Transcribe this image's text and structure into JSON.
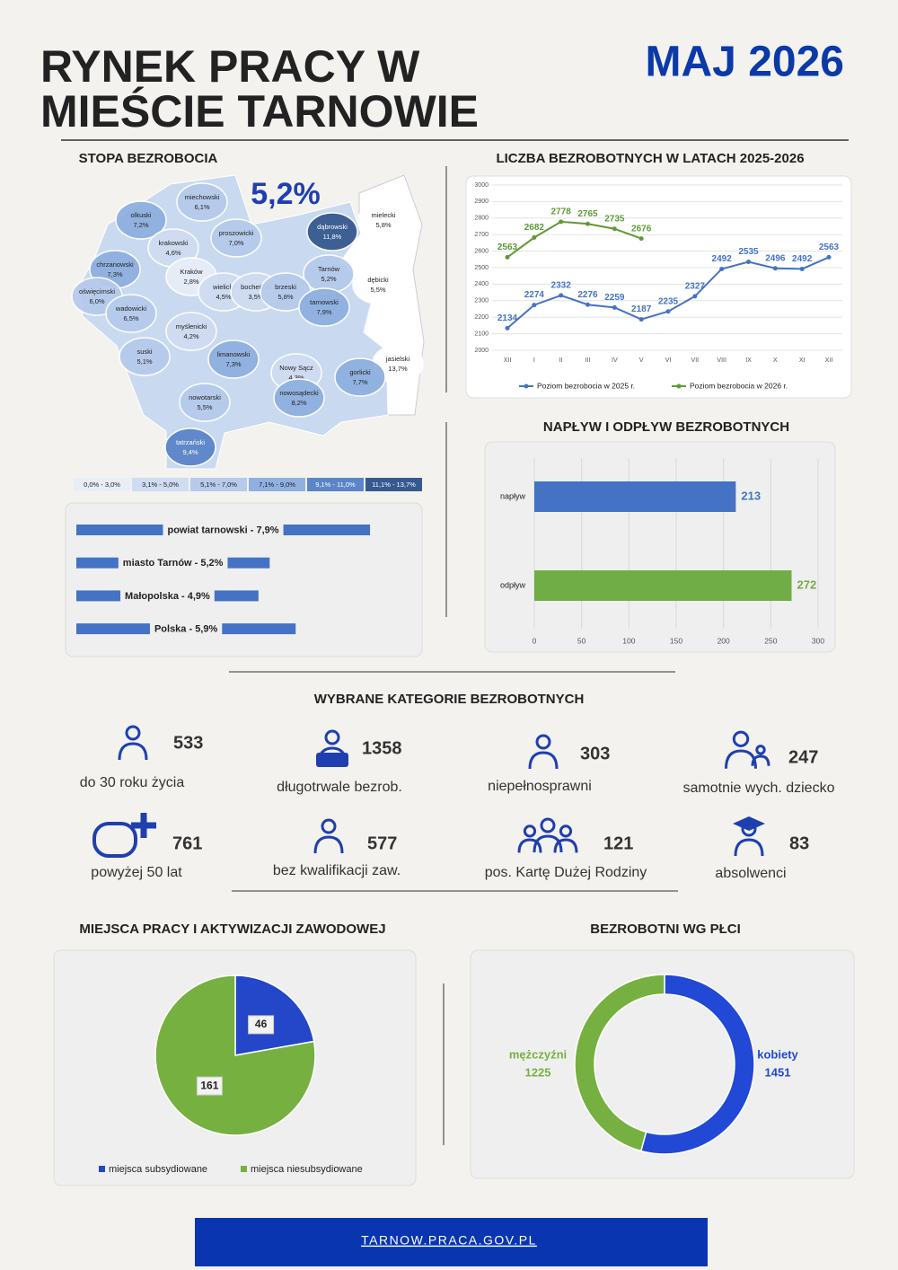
{
  "header": {
    "title_line1": "RYNEK PRACY W",
    "title_line2": "MIEŚCIE TARNOWIE",
    "date": "MAJ 2026"
  },
  "map": {
    "title": "STOPA BEZROBOCIA",
    "headline": "5,2%",
    "regions": [
      {
        "name": "miechowski",
        "rate": "6,1%",
        "color": "#b6cbeb"
      },
      {
        "name": "olkuski",
        "rate": "7,2%",
        "color": "#8fb0e0"
      },
      {
        "name": "proszowicki",
        "rate": "7,0%",
        "color": "#b6cbeb"
      },
      {
        "name": "dąbrowski",
        "rate": "11,8%",
        "color": "#36598f"
      },
      {
        "name": "mielecki",
        "rate": "5,8%",
        "color": "#ffffff"
      },
      {
        "name": "krakowski",
        "rate": "4,6%",
        "color": "#cfdcf1"
      },
      {
        "name": "chrzanowski",
        "rate": "7,3%",
        "color": "#8fb0e0"
      },
      {
        "name": "Kraków",
        "rate": "2,8%",
        "color": "#e8eef8"
      },
      {
        "name": "Tarnów",
        "rate": "5,2%",
        "color": "#b6cbeb"
      },
      {
        "name": "dębicki",
        "rate": "5,5%",
        "color": "#ffffff"
      },
      {
        "name": "oświęcimski",
        "rate": "6,0%",
        "color": "#b6cbeb"
      },
      {
        "name": "wielicki",
        "rate": "4,5%",
        "color": "#cfdcf1"
      },
      {
        "name": "bocheński",
        "rate": "3,5%",
        "color": "#cfdcf1"
      },
      {
        "name": "brzeski",
        "rate": "5,8%",
        "color": "#b6cbeb"
      },
      {
        "name": "tarnowski",
        "rate": "7,9%",
        "color": "#8fb0e0"
      },
      {
        "name": "wadowicki",
        "rate": "6,5%",
        "color": "#b6cbeb"
      },
      {
        "name": "myślenicki",
        "rate": "4,2%",
        "color": "#cfdcf1"
      },
      {
        "name": "suski",
        "rate": "5,1%",
        "color": "#b6cbeb"
      },
      {
        "name": "limanowski",
        "rate": "7,3%",
        "color": "#8fb0e0"
      },
      {
        "name": "Nowy Sącz",
        "rate": "4,3%",
        "color": "#cfdcf1"
      },
      {
        "name": "jasielski",
        "rate": "13,7%",
        "color": "#ffffff"
      },
      {
        "name": "gorlicki",
        "rate": "7,7%",
        "color": "#8fb0e0"
      },
      {
        "name": "nowosądecki",
        "rate": "8,2%",
        "color": "#8fb0e0"
      },
      {
        "name": "nowotarski",
        "rate": "5,5%",
        "color": "#b6cbeb"
      },
      {
        "name": "tatrzański",
        "rate": "9,4%",
        "color": "#5b84c9"
      }
    ],
    "legend": [
      {
        "label": "0,0% - 3,0%",
        "color": "#e8eef8"
      },
      {
        "label": "3,1% - 5,0%",
        "color": "#cfdcf1"
      },
      {
        "label": "5,1% - 7,0%",
        "color": "#b6cbeb"
      },
      {
        "label": "7,1% - 9,0%",
        "color": "#8fb0e0"
      },
      {
        "label": "9,1% - 11,0%",
        "color": "#5b84c9"
      },
      {
        "label": "11,1% - 13,7%",
        "color": "#36598f"
      }
    ]
  },
  "chart_data": [
    {
      "type": "hbar",
      "categories": [
        "powiat tarnowski - 7,9%",
        "miasto Tarnów - 5,2%",
        "Małopolska - 4,9%",
        "Polska - 5,9%"
      ],
      "values": [
        7.9,
        5.2,
        4.9,
        5.9
      ],
      "color": "#4472c4"
    },
    {
      "type": "line",
      "title": "LICZBA BEZROBOTNYCH W LATACH 2025-2026",
      "categories": [
        "XII",
        "I",
        "II",
        "III",
        "IV",
        "V",
        "VI",
        "VII",
        "VIII",
        "IX",
        "X",
        "XI",
        "XII"
      ],
      "series": [
        {
          "name": "Poziom bezrobocia w 2025 r.",
          "color": "#4472c4",
          "values": [
            2134,
            2274,
            2332,
            2276,
            2259,
            2187,
            2235,
            2327,
            2492,
            2535,
            2496,
            2492,
            2563
          ]
        },
        {
          "name": "Poziom bezrobocia w 2026 r.",
          "color": "#5f9a36",
          "values": [
            2563,
            2682,
            2778,
            2765,
            2735,
            2676,
            null,
            null,
            null,
            null,
            null,
            null,
            null
          ]
        }
      ],
      "ylim": [
        2000,
        3000
      ],
      "yticks": [
        2000,
        2100,
        2200,
        2300,
        2400,
        2500,
        2600,
        2700,
        2800,
        2900,
        3000
      ],
      "grid": true
    },
    {
      "type": "flowbar",
      "title": "NAPŁYW I ODPŁYW BEZROBOTNYCH",
      "categories": [
        "napływ",
        "odpływ"
      ],
      "values": [
        213,
        272
      ],
      "colors": [
        "#4472c4",
        "#70ad47"
      ],
      "xlim": [
        0,
        300
      ],
      "xticks": [
        0,
        50,
        100,
        150,
        200,
        250,
        300
      ],
      "grid": true
    },
    {
      "type": "pie",
      "title": "MIEJSCA PRACY I AKTYWIZACJI ZAWODOWEJ",
      "categories": [
        "miejsca subsydiowane",
        "miejsca niesubsydiowane"
      ],
      "values": [
        46,
        161
      ],
      "colors": [
        "#2446c8",
        "#76b041"
      ]
    },
    {
      "type": "donut",
      "title": "BEZROBOTNI WG PŁCI",
      "categories": [
        "kobiety",
        "mężczyźni"
      ],
      "values": [
        1451,
        1225
      ],
      "colors": [
        "#2149d6",
        "#76b041"
      ]
    }
  ],
  "categories": {
    "title": "WYBRANE KATEGORIE BEZROBOTNYCH",
    "items": [
      {
        "label": "do 30 roku życia",
        "value": 533
      },
      {
        "label": "długotrwale bezrob.",
        "value": 1358
      },
      {
        "label": "niepełnosprawni",
        "value": 303
      },
      {
        "label": "samotnie wych. dziecko",
        "value": 247
      },
      {
        "label": "powyżej 50 lat",
        "value": 761
      },
      {
        "label": "bez kwalifikacji zaw.",
        "value": 577
      },
      {
        "label": "pos. Kartę Dużej Rodziny",
        "value": 121
      },
      {
        "label": "absolwenci",
        "value": 83
      }
    ]
  },
  "footer": {
    "url": "TARNOW.PRACA.GOV.PL"
  }
}
